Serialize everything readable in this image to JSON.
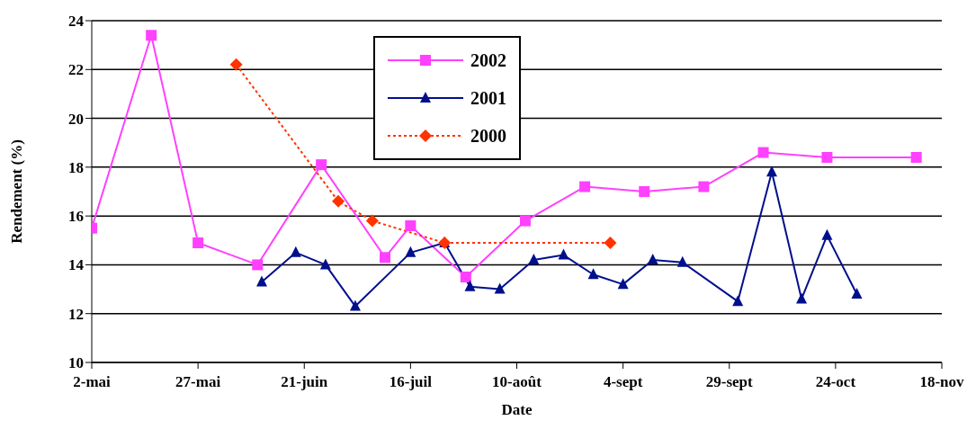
{
  "chart_data": {
    "type": "line",
    "xlabel": "Date",
    "ylabel": "Rendement (%)",
    "ylim": [
      10,
      24
    ],
    "yticks": [
      10,
      12,
      14,
      16,
      18,
      20,
      22,
      24
    ],
    "xlim": [
      "--05-02",
      "--11-18"
    ],
    "xticks": [
      {
        "value": "--05-02",
        "label": "2-mai"
      },
      {
        "value": "--05-27",
        "label": "27-mai"
      },
      {
        "value": "--06-21",
        "label": "21-juin"
      },
      {
        "value": "--07-16",
        "label": "16-juil"
      },
      {
        "value": "--08-10",
        "label": "10-août"
      },
      {
        "value": "--09-04",
        "label": "4-sept"
      },
      {
        "value": "--09-29",
        "label": "29-sept"
      },
      {
        "value": "--10-24",
        "label": "24-oct"
      },
      {
        "value": "--11-18",
        "label": "18-nov"
      }
    ],
    "grid": "y",
    "legend": "top",
    "series": [
      {
        "name": "2002",
        "color": "#ff40ff",
        "marker": "square",
        "line_style": "solid",
        "x": [
          "--05-02",
          "--05-16",
          "--05-27",
          "--06-10",
          "--06-25",
          "--07-10",
          "--07-16",
          "--07-29",
          "--08-12",
          "--08-26",
          "--09-09",
          "--09-23",
          "--10-07",
          "--10-22",
          "--11-12"
        ],
        "values": [
          15.5,
          23.4,
          14.9,
          14.0,
          18.1,
          14.3,
          15.6,
          13.5,
          15.8,
          17.2,
          17.0,
          17.2,
          18.6,
          18.4,
          18.4
        ]
      },
      {
        "name": "2001",
        "color": "#000f8c",
        "marker": "triangle",
        "line_style": "solid",
        "x": [
          "--06-11",
          "--06-19",
          "--06-26",
          "--07-03",
          "--07-16",
          "--07-24",
          "--07-30",
          "--08-06",
          "--08-14",
          "--08-21",
          "--08-28",
          "--09-04",
          "--09-11",
          "--09-18",
          "--10-01",
          "--10-09",
          "--10-16",
          "--10-22",
          "--10-29"
        ],
        "values": [
          13.3,
          14.5,
          14.0,
          12.3,
          14.5,
          14.9,
          13.1,
          13.0,
          14.2,
          14.4,
          13.6,
          13.2,
          14.2,
          14.1,
          12.5,
          17.8,
          12.6,
          15.2,
          12.8
        ]
      },
      {
        "name": "2000",
        "color": "#ff3300",
        "marker": "diamond",
        "line_style": "dotted",
        "x": [
          "--06-05",
          "--06-29",
          "--07-07",
          "--07-24",
          "--09-01"
        ],
        "values": [
          22.2,
          16.6,
          15.8,
          14.9,
          14.9
        ]
      }
    ]
  }
}
